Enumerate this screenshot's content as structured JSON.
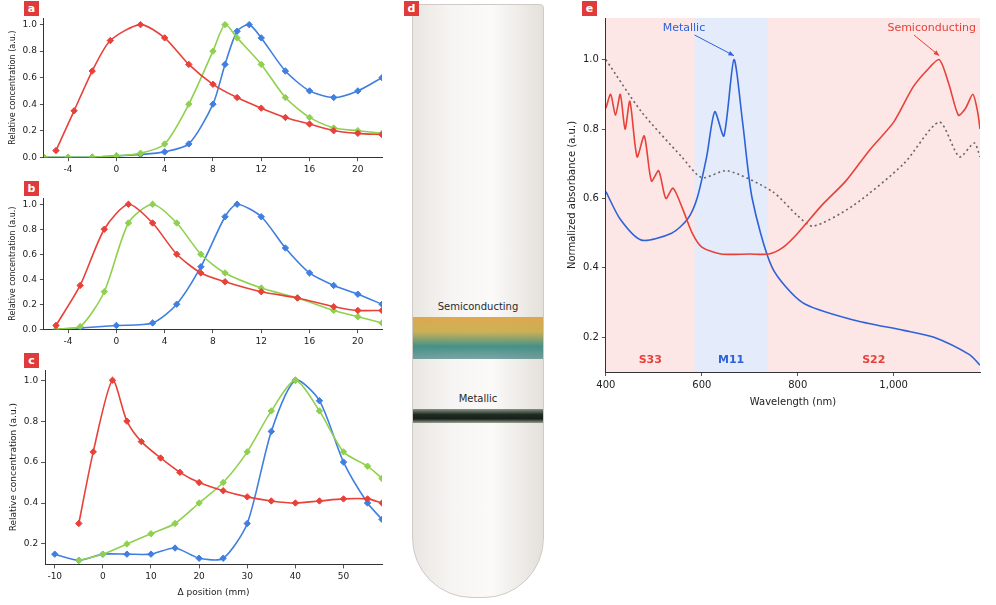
{
  "chart_data": [
    {
      "type": "line",
      "title": "a",
      "y_label": "Relative concentration (a.u.)",
      "xlim": [
        -6,
        22
      ],
      "xticks": [
        -4,
        0,
        4,
        8,
        12,
        16,
        20
      ],
      "ylim": [
        0,
        1.05
      ],
      "yticks": [
        {
          "value": 0,
          "label": "0.0"
        },
        0.2,
        0.4,
        0.6,
        0.8,
        {
          "value": 1,
          "label": "1.0"
        }
      ],
      "grid": false,
      "marker": "diamond",
      "series": [
        {
          "color": "#e8413a",
          "x": [
            -5,
            -3.5,
            -2,
            -0.5,
            2,
            4,
            6,
            8,
            10,
            12,
            14,
            16,
            18,
            20,
            22
          ],
          "values": [
            0.05,
            0.35,
            0.65,
            0.88,
            1.0,
            0.9,
            0.7,
            0.55,
            0.45,
            0.37,
            0.3,
            0.25,
            0.2,
            0.18,
            0.17
          ]
        },
        {
          "color": "#8fd14f",
          "x": [
            -6,
            -4,
            -2,
            0,
            2,
            4,
            6,
            8,
            9,
            10,
            12,
            14,
            16,
            18,
            20,
            22
          ],
          "values": [
            0,
            0,
            0,
            0.01,
            0.03,
            0.1,
            0.4,
            0.8,
            1.0,
            0.9,
            0.7,
            0.45,
            0.3,
            0.22,
            0.2,
            0.18
          ]
        },
        {
          "color": "#3f7fe0",
          "x": [
            -6,
            -4,
            -2,
            0,
            2,
            4,
            6,
            8,
            9,
            10,
            11,
            12,
            14,
            16,
            18,
            20,
            22
          ],
          "values": [
            0,
            0,
            0,
            0.01,
            0.02,
            0.04,
            0.1,
            0.4,
            0.7,
            0.95,
            1.0,
            0.9,
            0.65,
            0.5,
            0.45,
            0.5,
            0.6
          ]
        }
      ]
    },
    {
      "type": "line",
      "title": "b",
      "y_label": "Relative concentration (a.u.)",
      "xlim": [
        -6,
        22
      ],
      "xticks": [
        -4,
        0,
        4,
        8,
        12,
        16,
        20
      ],
      "ylim": [
        0,
        1.05
      ],
      "yticks": [
        {
          "value": 0,
          "label": "0.0"
        },
        0.2,
        0.4,
        0.6,
        0.8,
        {
          "value": 1,
          "label": "1.0"
        }
      ],
      "grid": false,
      "marker": "diamond",
      "series": [
        {
          "color": "#e8413a",
          "x": [
            -5,
            -3,
            -1,
            1,
            3,
            5,
            7,
            9,
            12,
            15,
            18,
            20,
            22
          ],
          "values": [
            0.03,
            0.35,
            0.8,
            1.0,
            0.85,
            0.6,
            0.45,
            0.38,
            0.3,
            0.25,
            0.18,
            0.15,
            0.15
          ]
        },
        {
          "color": "#8fd14f",
          "x": [
            -5,
            -3,
            -1,
            1,
            3,
            5,
            7,
            9,
            12,
            15,
            18,
            20,
            22
          ],
          "values": [
            0,
            0.02,
            0.3,
            0.85,
            1.0,
            0.85,
            0.6,
            0.45,
            0.33,
            0.25,
            0.15,
            0.1,
            0.05
          ]
        },
        {
          "color": "#3f7fe0",
          "x": [
            -5,
            -3,
            0,
            3,
            5,
            7,
            9,
            10,
            12,
            14,
            16,
            18,
            20,
            22
          ],
          "values": [
            0,
            0.01,
            0.03,
            0.05,
            0.2,
            0.5,
            0.9,
            1.0,
            0.9,
            0.65,
            0.45,
            0.35,
            0.28,
            0.2
          ]
        }
      ]
    },
    {
      "type": "line",
      "title": "c",
      "y_label": "Relative concentration (a.u.)",
      "x_label": "Δ position (mm)",
      "xlim": [
        -12,
        58
      ],
      "xticks": [
        -10,
        0,
        10,
        20,
        30,
        40,
        50
      ],
      "ylim": [
        0.1,
        1.05
      ],
      "yticks": [
        0.2,
        0.4,
        0.6,
        0.8,
        {
          "value": 1,
          "label": "1.0"
        }
      ],
      "grid": false,
      "marker": "diamond",
      "series": [
        {
          "color": "#e8413a",
          "x": [
            -5,
            -2,
            2,
            5,
            8,
            12,
            16,
            20,
            25,
            30,
            35,
            40,
            45,
            50,
            55,
            58
          ],
          "values": [
            0.3,
            0.65,
            1.0,
            0.8,
            0.7,
            0.62,
            0.55,
            0.5,
            0.46,
            0.43,
            0.41,
            0.4,
            0.41,
            0.42,
            0.42,
            0.4
          ]
        },
        {
          "color": "#8fd14f",
          "x": [
            -5,
            0,
            5,
            10,
            15,
            20,
            25,
            30,
            35,
            40,
            45,
            50,
            55,
            58
          ],
          "values": [
            0.12,
            0.15,
            0.2,
            0.25,
            0.3,
            0.4,
            0.5,
            0.65,
            0.85,
            1.0,
            0.85,
            0.65,
            0.58,
            0.52
          ]
        },
        {
          "color": "#3f7fe0",
          "x": [
            -10,
            -5,
            0,
            5,
            10,
            15,
            20,
            25,
            30,
            35,
            40,
            45,
            50,
            55,
            58
          ],
          "values": [
            0.15,
            0.12,
            0.15,
            0.15,
            0.15,
            0.18,
            0.13,
            0.13,
            0.3,
            0.75,
            1.0,
            0.9,
            0.6,
            0.4,
            0.32
          ]
        }
      ]
    },
    {
      "type": "line",
      "title": "e",
      "y_label": "Normalized absorbance (a.u.)",
      "x_label": "Wavelength (nm)",
      "xlim": [
        400,
        1180
      ],
      "xticks": [
        400,
        600,
        800,
        {
          "value": 1000,
          "label": "1,000"
        }
      ],
      "ylim": [
        0.1,
        1.12
      ],
      "yticks": [
        0.2,
        0.4,
        0.6,
        0.8,
        {
          "value": 1,
          "label": "1.0"
        }
      ],
      "grid": false,
      "marker": "none",
      "bands": [
        {
          "label": "S33",
          "range": [
            400,
            585
          ],
          "color": "#e8413a"
        },
        {
          "label": "M11",
          "range": [
            585,
            737
          ],
          "color": "#2f62d8"
        },
        {
          "label": "S22",
          "range": [
            737,
            1180
          ],
          "color": "#e8413a"
        }
      ],
      "series": [
        {
          "name": "Semiconducting",
          "color": "#e8413a",
          "x": [
            400,
            410,
            420,
            430,
            440,
            450,
            465,
            480,
            495,
            510,
            525,
            540,
            560,
            580,
            600,
            640,
            700,
            740,
            770,
            800,
            850,
            900,
            950,
            1000,
            1040,
            1070,
            1095,
            1115,
            1135,
            1150,
            1165,
            1175,
            1180
          ],
          "values": [
            0.86,
            0.9,
            0.84,
            0.9,
            0.8,
            0.88,
            0.72,
            0.78,
            0.65,
            0.68,
            0.6,
            0.63,
            0.57,
            0.5,
            0.46,
            0.44,
            0.44,
            0.44,
            0.46,
            0.5,
            0.58,
            0.65,
            0.74,
            0.82,
            0.92,
            0.97,
            1.0,
            0.93,
            0.84,
            0.86,
            0.9,
            0.85,
            0.8
          ]
        },
        {
          "name": "Metallic",
          "color": "#2f62d8",
          "x": [
            400,
            430,
            474,
            537,
            570,
            590,
            610,
            627,
            646,
            667,
            685,
            705,
            747,
            810,
            916,
            1021,
            1084,
            1158,
            1180
          ],
          "values": [
            0.62,
            0.54,
            0.48,
            0.5,
            0.54,
            0.6,
            0.72,
            0.85,
            0.78,
            1.0,
            0.82,
            0.6,
            0.4,
            0.3,
            0.25,
            0.22,
            0.2,
            0.15,
            0.12
          ]
        },
        {
          "color": "#666666",
          "line_style": "dotted",
          "x": [
            400,
            474,
            558,
            600,
            653,
            747,
            800,
            832,
            916,
            1021,
            1095,
            1137,
            1168,
            1180
          ],
          "values": [
            1.0,
            0.85,
            0.72,
            0.66,
            0.68,
            0.62,
            0.55,
            0.52,
            0.58,
            0.7,
            0.82,
            0.72,
            0.76,
            0.72
          ]
        }
      ]
    }
  ],
  "photo": {
    "title": "d",
    "labels": [
      "Semiconducting",
      "Metallic"
    ]
  }
}
